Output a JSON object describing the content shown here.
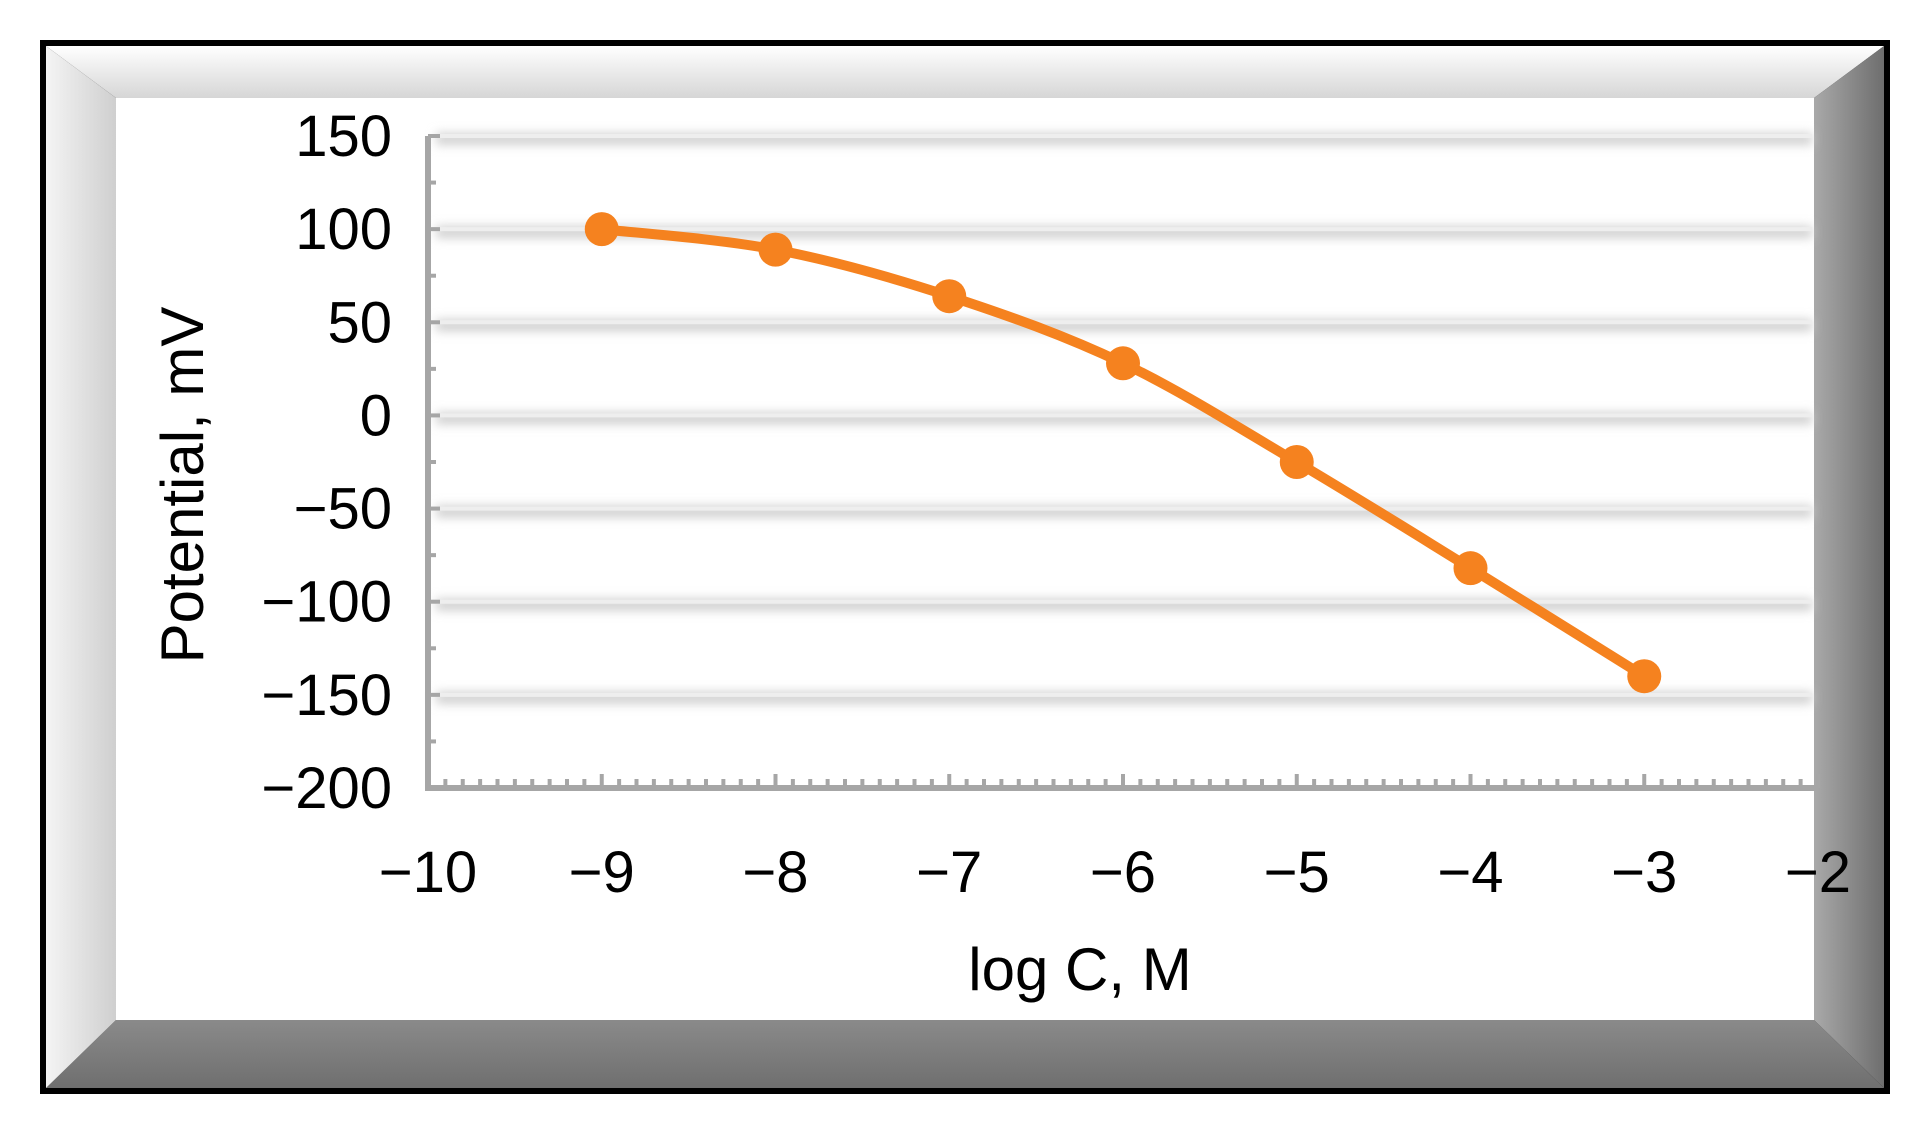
{
  "chart_data": {
    "type": "line",
    "title": "",
    "xlabel": "log C, M",
    "ylabel": "Potential, mV",
    "xlim": [
      -10,
      -2
    ],
    "ylim": [
      -200,
      150
    ],
    "xticks": [
      -10,
      -9,
      -8,
      -7,
      -6,
      -5,
      -4,
      -3,
      -2
    ],
    "yticks": [
      150,
      100,
      50,
      0,
      -50,
      -100,
      -150,
      -200
    ],
    "xtick_labels": [
      "−10",
      "−9",
      "−8",
      "−7",
      "−6",
      "−5",
      "−4",
      "−3",
      "−2"
    ],
    "ytick_labels": [
      "150",
      "100",
      "50",
      "0",
      "−50",
      "−100",
      "−150",
      "−200"
    ],
    "grid": true,
    "legend": "none",
    "series": [
      {
        "x": [
          -9,
          -8,
          -7,
          -6,
          -5,
          -4,
          -3
        ],
        "y": [
          100,
          89,
          64,
          28,
          -25,
          -82,
          -140
        ],
        "color": "#F5821F"
      }
    ]
  }
}
